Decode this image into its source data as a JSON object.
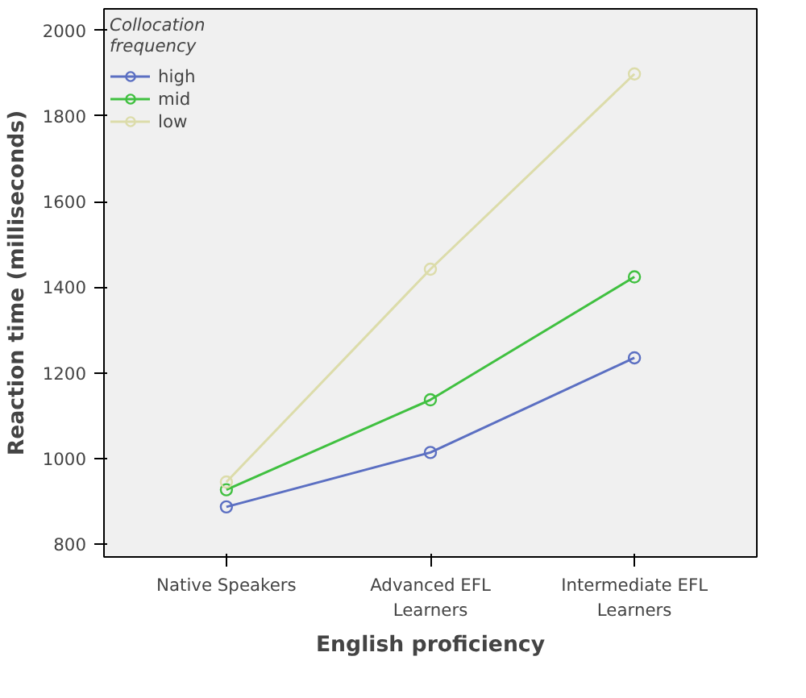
{
  "chart_data": {
    "type": "line",
    "xlabel": "English proficiency",
    "ylabel": "Reaction time (milliseconds)",
    "legend_title": "Collocation frequency",
    "categories": [
      "Native Speakers",
      "Advanced EFL Learners",
      "Intermediate EFL Learners"
    ],
    "series": [
      {
        "name": "high",
        "color": "#5b6fc2",
        "values": [
          887,
          1014,
          1235
        ]
      },
      {
        "name": "mid",
        "color": "#40c040",
        "values": [
          927,
          1137,
          1424
        ]
      },
      {
        "name": "low",
        "color": "#dcdcaa",
        "values": [
          945,
          1442,
          1898
        ]
      }
    ],
    "ylim": [
      770,
      2050
    ],
    "yticks": [
      800,
      1000,
      1200,
      1400,
      1600,
      1800,
      2000
    ],
    "marker": "circle",
    "legend": "top left",
    "grid": false
  }
}
